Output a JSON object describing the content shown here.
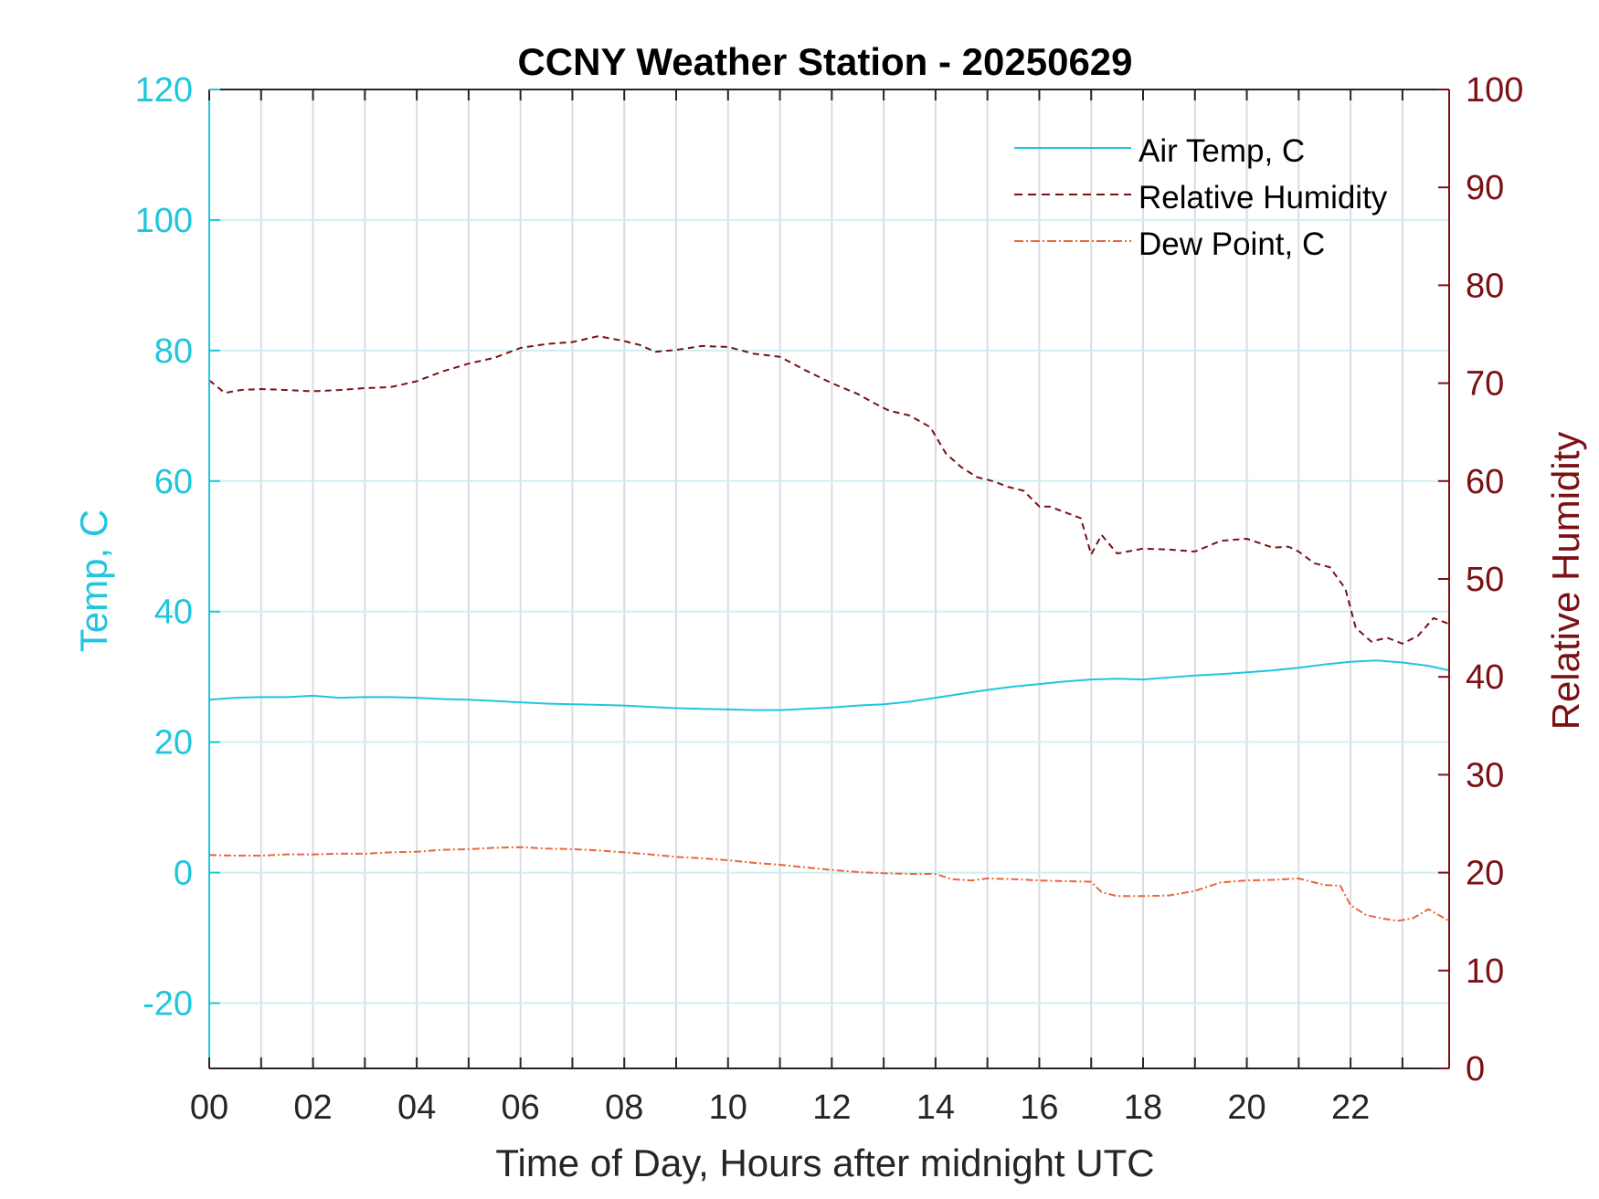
{
  "chart_data": {
    "type": "line",
    "title": "CCNY Weather Station - 20250629",
    "xlabel": "Time of Day, Hours after midnight UTC",
    "ylabel_left": "Temp, C",
    "ylabel_right": "Relative Humidity",
    "xlim": [
      0,
      23.9
    ],
    "ylim_left": [
      -30,
      120
    ],
    "ylim_right": [
      0,
      100
    ],
    "x_ticks": [
      0,
      2,
      4,
      6,
      8,
      10,
      12,
      14,
      16,
      18,
      20,
      22
    ],
    "x_tick_labels": [
      "00",
      "02",
      "04",
      "06",
      "08",
      "10",
      "12",
      "14",
      "16",
      "18",
      "20",
      "22"
    ],
    "x_grid_every": 1,
    "y_left_ticks": [
      -20,
      0,
      20,
      40,
      60,
      80,
      100,
      120
    ],
    "y_left_tick_labels": [
      "-20",
      "0",
      "20",
      "40",
      "60",
      "80",
      "100",
      "120"
    ],
    "y_right_ticks": [
      0,
      10,
      20,
      30,
      40,
      50,
      60,
      70,
      80,
      90,
      100
    ],
    "y_right_tick_labels": [
      "0",
      "10",
      "20",
      "30",
      "40",
      "50",
      "60",
      "70",
      "80",
      "90",
      "100"
    ],
    "grid": true,
    "legend_position": "top-right",
    "colors": {
      "temp": "#1fc6dc",
      "rh": "#7b1015",
      "dew": "#e5683a",
      "axis_left": "#1fc6dc",
      "axis_right": "#7b1015",
      "grid_vertical": "#d9dde2",
      "grid_horizontal": "#cdf0f5"
    },
    "series": [
      {
        "name": "Air Temp, C",
        "axis": "left",
        "style": "solid",
        "x": [
          0,
          0.5,
          1,
          1.5,
          2,
          2.5,
          3,
          3.5,
          4,
          4.5,
          5,
          5.5,
          6,
          6.5,
          7,
          7.5,
          8,
          8.5,
          9,
          9.5,
          10,
          10.5,
          11,
          11.5,
          12,
          12.5,
          13,
          13.5,
          14,
          14.5,
          15,
          15.5,
          16,
          16.5,
          17,
          17.5,
          18,
          18.5,
          19,
          19.5,
          20,
          20.5,
          21,
          21.5,
          22,
          22.5,
          23,
          23.5,
          23.9
        ],
        "values": [
          26.5,
          26.8,
          26.9,
          26.9,
          27.1,
          26.8,
          26.9,
          26.9,
          26.8,
          26.6,
          26.5,
          26.3,
          26.1,
          25.9,
          25.8,
          25.7,
          25.6,
          25.4,
          25.2,
          25.1,
          25.0,
          24.9,
          24.9,
          25.1,
          25.3,
          25.6,
          25.8,
          26.2,
          26.8,
          27.4,
          28.0,
          28.5,
          28.9,
          29.3,
          29.6,
          29.7,
          29.6,
          29.9,
          30.2,
          30.4,
          30.7,
          31.0,
          31.4,
          31.9,
          32.3,
          32.5,
          32.2,
          31.7,
          31.0
        ]
      },
      {
        "name": "Relative Humidity",
        "axis": "right",
        "style": "dashed",
        "x": [
          0,
          0.3,
          0.6,
          1,
          1.5,
          1.9,
          2.1,
          2.5,
          3,
          3.5,
          4,
          4.5,
          5,
          5.5,
          6,
          6.5,
          7,
          7.5,
          8,
          8.3,
          8.6,
          9,
          9.5,
          10,
          10.5,
          11,
          11.5,
          12,
          12.5,
          12.8,
          13.1,
          13.5,
          13.9,
          14.2,
          14.5,
          14.8,
          15.1,
          15.4,
          15.7,
          16,
          16.2,
          16.5,
          16.8,
          17.0,
          17.2,
          17.5,
          18,
          18.5,
          19,
          19.5,
          20,
          20.5,
          20.8,
          21.0,
          21.3,
          21.6,
          21.9,
          22.1,
          22.4,
          22.7,
          23.0,
          23.3,
          23.6,
          23.9
        ],
        "values": [
          70.3,
          69.0,
          69.3,
          69.4,
          69.3,
          69.2,
          69.2,
          69.3,
          69.5,
          69.6,
          70.2,
          71.2,
          72.0,
          72.6,
          73.6,
          74.0,
          74.2,
          74.8,
          74.3,
          73.9,
          73.2,
          73.4,
          73.8,
          73.7,
          73.0,
          72.7,
          71.3,
          70.0,
          68.9,
          68.0,
          67.2,
          66.7,
          65.5,
          62.8,
          61.4,
          60.4,
          60.0,
          59.4,
          59.0,
          57.4,
          57.4,
          56.8,
          56.2,
          52.5,
          54.5,
          52.6,
          53.1,
          53.0,
          52.8,
          53.9,
          54.1,
          53.2,
          53.3,
          52.8,
          51.6,
          51.2,
          49.0,
          45.0,
          43.6,
          44.0,
          43.4,
          44.2,
          46.0,
          45.4
        ]
      },
      {
        "name": "Dew Point, C",
        "axis": "left",
        "style": "dashdot",
        "x": [
          0,
          0.5,
          1,
          1.5,
          2,
          2.5,
          3,
          3.5,
          4,
          4.5,
          5,
          5.5,
          6,
          6.5,
          7,
          7.5,
          8,
          8.5,
          9,
          9.5,
          10,
          10.5,
          11,
          11.5,
          12,
          12.5,
          13,
          13.5,
          14,
          14.3,
          14.7,
          15,
          15.5,
          16,
          16.5,
          17,
          17.2,
          17.5,
          18,
          18.5,
          19,
          19.5,
          20,
          20.5,
          21,
          21.5,
          21.8,
          22.0,
          22.3,
          22.6,
          22.9,
          23.2,
          23.5,
          23.9
        ],
        "values": [
          2.7,
          2.6,
          2.6,
          2.8,
          2.8,
          2.9,
          2.9,
          3.1,
          3.2,
          3.5,
          3.6,
          3.8,
          3.9,
          3.7,
          3.6,
          3.4,
          3.1,
          2.8,
          2.4,
          2.2,
          1.9,
          1.5,
          1.2,
          0.8,
          0.4,
          0.1,
          -0.1,
          -0.2,
          -0.2,
          -1.0,
          -1.2,
          -0.9,
          -1.0,
          -1.2,
          -1.3,
          -1.4,
          -3.0,
          -3.6,
          -3.6,
          -3.5,
          -2.8,
          -1.5,
          -1.2,
          -1.1,
          -0.9,
          -1.9,
          -2.0,
          -5.0,
          -6.5,
          -7.0,
          -7.4,
          -7.0,
          -5.6,
          -7.4
        ]
      }
    ]
  }
}
